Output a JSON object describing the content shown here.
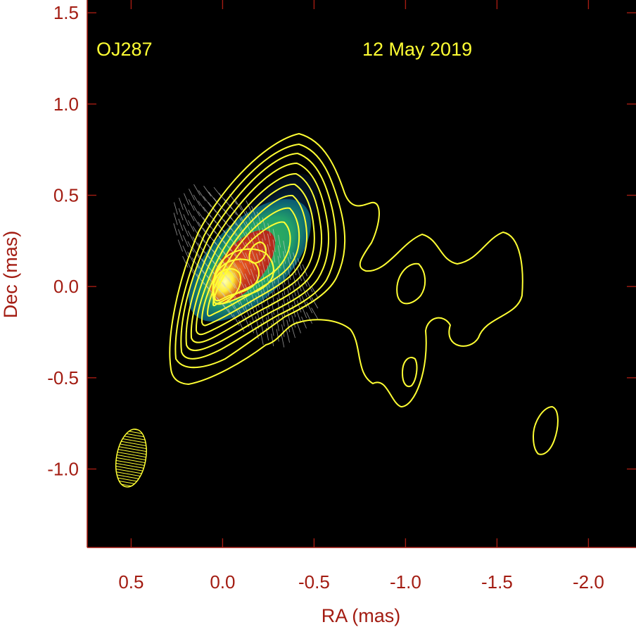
{
  "chart_data": {
    "type": "contour_image",
    "source_label": "OJ287",
    "date_label": "12 May 2019",
    "xlabel": "RA (mas)",
    "ylabel": "Dec (mas)",
    "xlim": [
      0.74,
      -2.26
    ],
    "ylim": [
      -1.43,
      1.57
    ],
    "x_ticks": [
      {
        "value": 0.5,
        "label": "0.5"
      },
      {
        "value": 0.0,
        "label": "0.0"
      },
      {
        "value": -0.5,
        "label": "-0.5"
      },
      {
        "value": -1.0,
        "label": "-1.0"
      },
      {
        "value": -1.5,
        "label": "-1.5"
      },
      {
        "value": -2.0,
        "label": "-2.0"
      }
    ],
    "y_ticks": [
      {
        "value": 1.5,
        "label": "1.5"
      },
      {
        "value": 1.0,
        "label": "1.0"
      },
      {
        "value": 0.5,
        "label": "0.5"
      },
      {
        "value": 0.0,
        "label": "0.0"
      },
      {
        "value": -0.5,
        "label": "-0.5"
      },
      {
        "value": -1.0,
        "label": "-1.0"
      }
    ],
    "core": {
      "ra": 0.0,
      "dec": 0.0
    },
    "beam": {
      "ra": 0.5,
      "dec": -0.94,
      "major_mas": 0.32,
      "minor_mas": 0.16,
      "pa_deg": -10
    },
    "colors": {
      "background": "#000000",
      "frame": "#a31c12",
      "tick_text": "#a31c12",
      "annotation": "#ffff33",
      "contour": "#ffff33",
      "vectors": "#cccccc"
    }
  }
}
